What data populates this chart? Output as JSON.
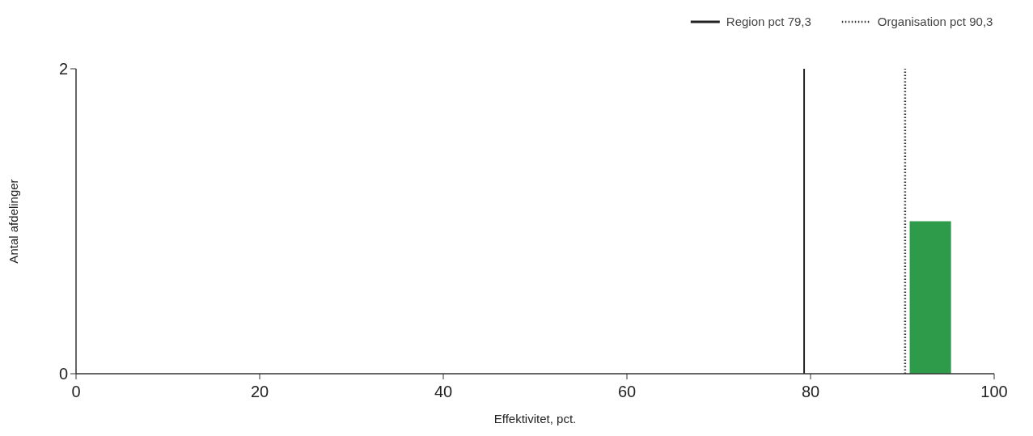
{
  "chart_data": {
    "type": "histogram",
    "xlabel": "Effektivitet, pct.",
    "ylabel": "Antal afdelinger",
    "bins": [
      90.8,
      95.3
    ],
    "values": [
      1
    ],
    "color": "#2e9b4a",
    "xlim": [
      0,
      100
    ],
    "xticks": [
      0,
      20,
      40,
      60,
      80,
      100
    ],
    "ylim": [
      0,
      2
    ],
    "yticks": [
      0,
      2
    ],
    "ref_lines": [
      {
        "axis": "x",
        "value": 79.3,
        "label": "Region pct 79,3",
        "color": "#222222",
        "line_style": "solid"
      },
      {
        "axis": "x",
        "value": 90.3,
        "label": "Organisation pct 90,3",
        "color": "#333333",
        "line_style": "dotted"
      }
    ],
    "legend": "top right",
    "grid": false
  }
}
